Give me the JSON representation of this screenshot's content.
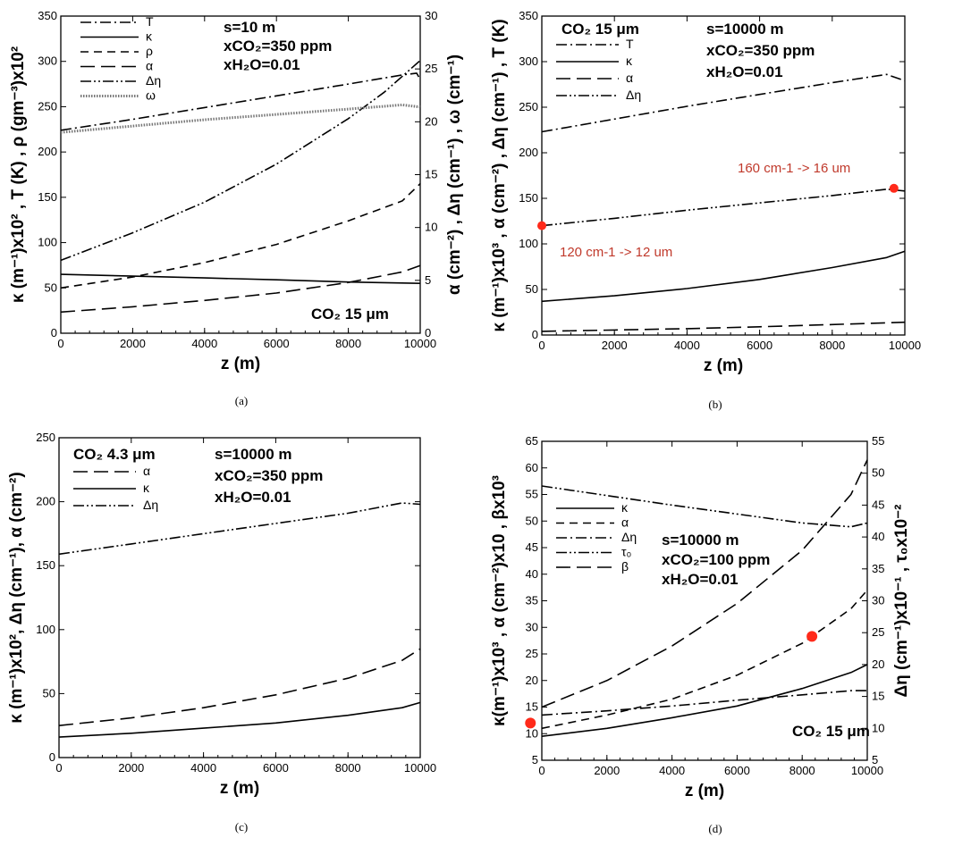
{
  "chart_data": [
    {
      "panel": "a",
      "type": "line",
      "caption": "(a)",
      "xlabel": "z (m)",
      "ylabel": "κ (m⁻¹)x10² , T (K) , ρ (gm⁻³)x10²",
      "y2label": "α (cm⁻²) , Δη (cm⁻¹) , ω (cm⁻¹)",
      "xlim": [
        0,
        10000
      ],
      "ylim": [
        0,
        350
      ],
      "y2lim": [
        0,
        30
      ],
      "xticks": [
        0,
        2000,
        4000,
        6000,
        8000,
        10000
      ],
      "yticks": [
        0,
        50,
        100,
        150,
        200,
        250,
        300,
        350
      ],
      "y2ticks": [
        0,
        5,
        10,
        15,
        20,
        25,
        30
      ],
      "annotations": [
        "s=10 m",
        "xCO₂=350 ppm",
        "xH₂O=0.01",
        "CO₂ 15 μm"
      ],
      "legend_position": "top-left",
      "series": [
        {
          "name": "T",
          "style": "dashdot",
          "axis": "left",
          "x": [
            0,
            2000,
            4000,
            6000,
            8000,
            9500,
            9900,
            10000
          ],
          "y": [
            224,
            236,
            249,
            262,
            275,
            285,
            287,
            280
          ]
        },
        {
          "name": "κ",
          "style": "solid",
          "axis": "left",
          "x": [
            0,
            2000,
            4000,
            6000,
            8000,
            10000
          ],
          "y": [
            65,
            63,
            61,
            59,
            56.5,
            55
          ]
        },
        {
          "name": "ρ",
          "style": "dashed",
          "axis": "left",
          "x": [
            0,
            2000,
            4000,
            6000,
            8000,
            9500,
            10000
          ],
          "y": [
            50,
            62,
            78,
            98,
            124,
            146,
            165
          ]
        },
        {
          "name": "α",
          "style": "longdash",
          "axis": "right",
          "x": [
            0,
            2000,
            4000,
            6000,
            8000,
            9500,
            10000
          ],
          "y": [
            2,
            2.5,
            3.1,
            3.8,
            4.8,
            5.8,
            6.4
          ]
        },
        {
          "name": "Δη",
          "style": "dashdotdot",
          "axis": "right",
          "x": [
            0,
            2000,
            4000,
            6000,
            8000,
            9000,
            10000
          ],
          "y": [
            6.9,
            9.5,
            12.4,
            16,
            20.3,
            22.8,
            25.8
          ]
        },
        {
          "name": "ω",
          "style": "dotted",
          "axis": "right",
          "x": [
            0,
            2000,
            4000,
            6000,
            8000,
            9500,
            10000
          ],
          "y": [
            19,
            19.6,
            20.2,
            20.7,
            21.2,
            21.6,
            21.4
          ]
        }
      ]
    },
    {
      "panel": "b",
      "type": "line",
      "caption": "(b)",
      "xlabel": "z (m)",
      "ylabel": "κ (m⁻¹)x10³ , α (cm⁻²) , Δη (cm⁻¹) , T (K)",
      "xlim": [
        0,
        10000
      ],
      "ylim": [
        0,
        350
      ],
      "xticks": [
        0,
        2000,
        4000,
        6000,
        8000,
        10000
      ],
      "yticks": [
        0,
        50,
        100,
        150,
        200,
        250,
        300,
        350
      ],
      "annotations": [
        "CO₂ 15 μm",
        "s=10000 m",
        "xCO₂=350 ppm",
        "xH₂O=0.01"
      ],
      "legend_position": "top-left",
      "red_notes": [
        "160 cm-1 -> 16 um",
        "120 cm-1 -> 12 um"
      ],
      "red_points": [
        {
          "x": 0,
          "y": 120
        },
        {
          "x": 9700,
          "y": 161
        }
      ],
      "series": [
        {
          "name": "T",
          "style": "dashdot",
          "x": [
            0,
            2000,
            4000,
            6000,
            8000,
            9500,
            10000
          ],
          "y": [
            223,
            237,
            251,
            264,
            277,
            286,
            279
          ]
        },
        {
          "name": "κ",
          "style": "solid",
          "x": [
            0,
            2000,
            4000,
            6000,
            8000,
            9500,
            10000
          ],
          "y": [
            37,
            43,
            51,
            61,
            74,
            85,
            92
          ]
        },
        {
          "name": "α",
          "style": "longdash",
          "x": [
            0,
            2000,
            4000,
            6000,
            8000,
            10000
          ],
          "y": [
            4,
            5.5,
            7,
            9,
            11.5,
            14
          ]
        },
        {
          "name": "Δη",
          "style": "dashdotdot",
          "x": [
            0,
            2000,
            4000,
            6000,
            8000,
            9500,
            10000
          ],
          "y": [
            120,
            128,
            137,
            145,
            153,
            160,
            158
          ]
        }
      ]
    },
    {
      "panel": "c",
      "type": "line",
      "caption": "(c)",
      "xlabel": "z (m)",
      "ylabel": "κ (m⁻¹)x10², Δη (cm⁻¹), α (cm⁻²)",
      "xlim": [
        0,
        10000
      ],
      "ylim": [
        0,
        250
      ],
      "xticks": [
        0,
        2000,
        4000,
        6000,
        8000,
        10000
      ],
      "yticks": [
        0,
        50,
        100,
        150,
        200,
        250
      ],
      "annotations": [
        "CO₂ 4.3 μm",
        "s=10000 m",
        "xCO₂=350 ppm",
        "xH₂O=0.01"
      ],
      "legend_position": "top-left",
      "series": [
        {
          "name": "α",
          "style": "longdash",
          "x": [
            0,
            2000,
            4000,
            6000,
            8000,
            9500,
            10000
          ],
          "y": [
            25,
            31,
            39,
            49,
            62,
            76,
            85
          ]
        },
        {
          "name": "κ",
          "style": "solid",
          "x": [
            0,
            2000,
            4000,
            6000,
            8000,
            9500,
            10000
          ],
          "y": [
            16,
            19,
            23,
            27,
            33,
            39,
            43
          ]
        },
        {
          "name": "Δη",
          "style": "dashdotdot",
          "x": [
            0,
            2000,
            4000,
            6000,
            8000,
            9500,
            10000
          ],
          "y": [
            159,
            167,
            175,
            183,
            191,
            199,
            198
          ]
        }
      ]
    },
    {
      "panel": "d",
      "type": "line",
      "caption": "(d)",
      "xlabel": "z (m)",
      "ylabel": "κ(m⁻¹)x10³ , α (cm⁻²)x10 , βx10³",
      "y2label": "Δη (cm⁻¹)x10⁻¹ , τ₀x10⁻²",
      "xlim": [
        0,
        10000
      ],
      "ylim": [
        5,
        65
      ],
      "y2lim": [
        5,
        55
      ],
      "xticks": [
        0,
        2000,
        4000,
        6000,
        8000,
        10000
      ],
      "yticks": [
        5,
        10,
        15,
        20,
        25,
        30,
        35,
        40,
        45,
        50,
        55,
        60,
        65
      ],
      "y2ticks": [
        5,
        10,
        15,
        20,
        25,
        30,
        35,
        40,
        45,
        50,
        55
      ],
      "annotations": [
        "s=10000 m",
        "xCO₂=100 ppm",
        "xH₂O=0.01",
        "CO₂ 15 μm"
      ],
      "legend_position": "left",
      "red_points": [
        {
          "x": -350,
          "y": 12
        },
        {
          "x": 8300,
          "y": 28.3
        }
      ],
      "series": [
        {
          "name": "κ",
          "style": "solid",
          "x": [
            0,
            2000,
            4000,
            6000,
            8000,
            9500,
            10000
          ],
          "y": [
            9.5,
            11,
            13,
            15.2,
            18.5,
            21.5,
            23
          ]
        },
        {
          "name": "α",
          "style": "dashed",
          "x": [
            0,
            2000,
            4000,
            6000,
            8000,
            9500,
            10000
          ],
          "y": [
            11,
            13.5,
            16.5,
            21,
            27,
            33.5,
            37
          ]
        },
        {
          "name": "Δη",
          "style": "dashdot",
          "x": [
            0,
            2000,
            4000,
            6000,
            8000,
            9500,
            10000
          ],
          "y": [
            13.5,
            14.3,
            15.2,
            16.3,
            17.3,
            18.1,
            18.1
          ]
        },
        {
          "name": "τ₀",
          "style": "dashdotdot",
          "axis": "right",
          "x": [
            0,
            2000,
            4000,
            6000,
            8000,
            9500,
            10000
          ],
          "y": [
            48,
            46.5,
            45,
            43.6,
            42.2,
            41.6,
            42.2
          ]
        },
        {
          "name": "β",
          "style": "longdash",
          "x": [
            0,
            2000,
            4000,
            6000,
            8000,
            9500,
            10000
          ],
          "y": [
            15,
            20,
            26.5,
            34.5,
            44.5,
            55,
            61.5
          ]
        }
      ]
    }
  ]
}
